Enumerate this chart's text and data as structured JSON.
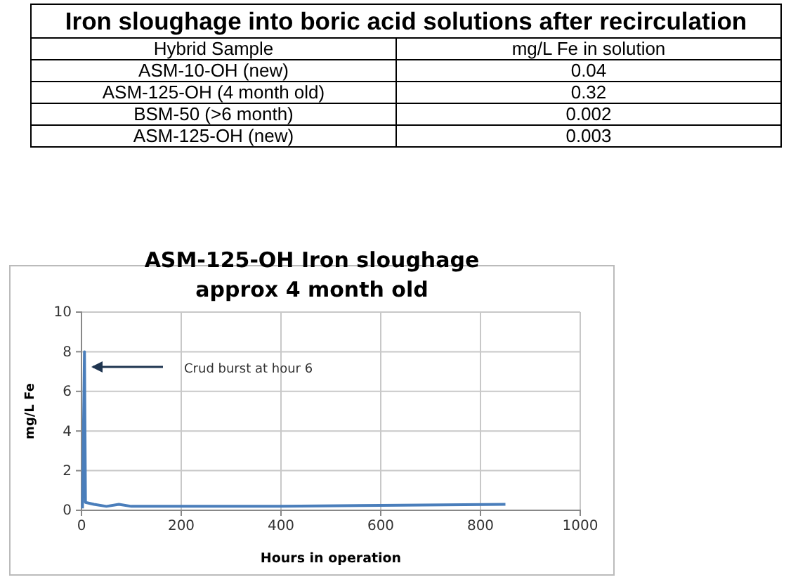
{
  "chart_data": [
    {
      "type": "other",
      "title": "Iron sloughage into boric acid solutions after recirculation",
      "xlabel": "Hybrid Sample",
      "ylabel": "mg/L Fe in solution",
      "categories": [
        "ASM-10-OH (new)",
        "ASM-125-OH (4 month old)",
        "BSM-50 (>6 month)",
        "ASM-125-OH (new)"
      ],
      "values": [
        0.04,
        0.32,
        0.002,
        0.003
      ],
      "data_labels": true
    },
    {
      "type": "line",
      "title": "ASM-125-OH Iron sloughage approx 4 month old",
      "xlabel": "Hours in operation",
      "ylabel": "mg/L Fe",
      "x": [
        2,
        6,
        8,
        25,
        50,
        75,
        100,
        200,
        400,
        600,
        850
      ],
      "series": [
        {
          "color": "#4a7ebb",
          "values": [
            0.1,
            8,
            0.4,
            0.3,
            0.2,
            0.3,
            0.2,
            0.2,
            0.2,
            0.25,
            0.3
          ]
        }
      ],
      "xlim": [
        0,
        1000
      ],
      "xticks": [
        0,
        200,
        400,
        600,
        800,
        1000
      ],
      "ylim": [
        0,
        10
      ],
      "yticks": [
        0,
        2,
        4,
        6,
        8,
        10
      ],
      "grid": true,
      "marker": "none",
      "line_style": "solid",
      "annotations": [
        "Crud burst at hour 6"
      ]
    }
  ]
}
